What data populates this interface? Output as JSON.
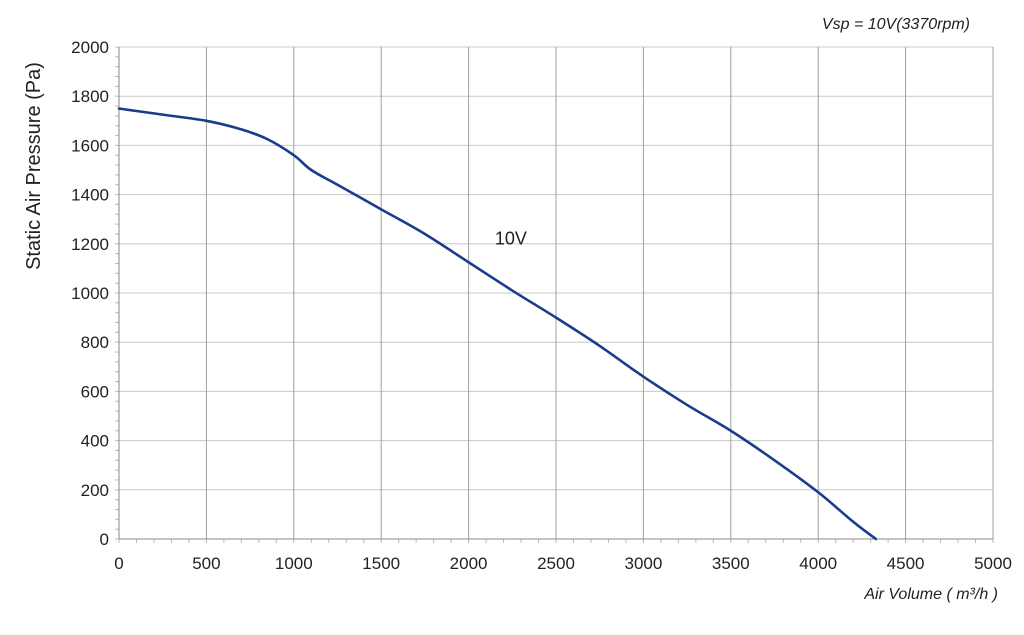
{
  "chart_data": {
    "type": "line",
    "title": "Vsp = 10V(3370rpm)",
    "xlabel": "Air Volume ( m³/h )",
    "ylabel": "Static Air Pressure  (Pa)",
    "xlim": [
      0,
      5000
    ],
    "ylim": [
      0,
      2000
    ],
    "xticks": [
      0,
      500,
      1000,
      1500,
      2000,
      2500,
      3000,
      3500,
      4000,
      4500,
      5000
    ],
    "yticks": [
      0,
      200,
      400,
      600,
      800,
      1000,
      1200,
      1400,
      1600,
      1800,
      2000
    ],
    "grid": true,
    "series": [
      {
        "name": "10V",
        "color": "#1a3c8c",
        "x": [
          0,
          250,
          500,
          700,
          850,
          1000,
          1100,
          1250,
          1500,
          1750,
          2000,
          2250,
          2500,
          2750,
          3000,
          3250,
          3500,
          3750,
          4000,
          4200,
          4330
        ],
        "y": [
          1750,
          1725,
          1700,
          1665,
          1625,
          1560,
          1500,
          1440,
          1340,
          1240,
          1125,
          1010,
          900,
          785,
          660,
          545,
          440,
          320,
          190,
          70,
          0
        ]
      }
    ],
    "series_label": {
      "text": "10V",
      "x": 2150,
      "y": 1100
    }
  }
}
